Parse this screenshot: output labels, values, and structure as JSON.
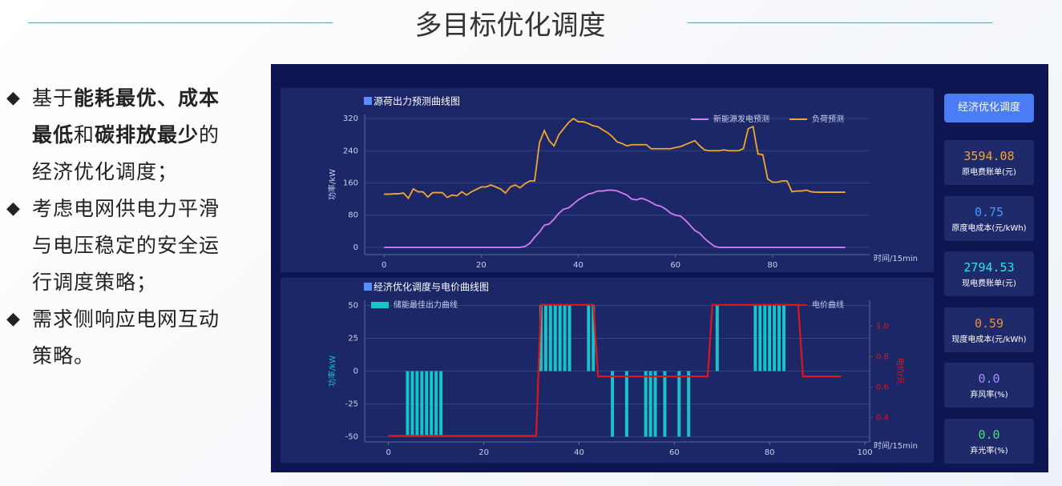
{
  "title": "多目标优化调度",
  "bullets": [
    {
      "segments": [
        {
          "text": "基于",
          "bold": false
        },
        {
          "text": "能耗最优、成本最低",
          "bold": true
        },
        {
          "text": "和",
          "bold": false
        },
        {
          "text": "碳排放最少",
          "bold": true
        },
        {
          "text": "的经济优化调度；",
          "bold": false
        }
      ]
    },
    {
      "segments": [
        {
          "text": "考虑电网供电力平滑与电压稳定的安全运行调度策略；",
          "bold": false
        }
      ]
    },
    {
      "segments": [
        {
          "text": "需求侧响应电网互动策略。",
          "bold": false
        }
      ]
    }
  ],
  "chart_data": [
    {
      "type": "line",
      "title": "源荷出力预测曲线图",
      "x_label": "时间/15min",
      "y_label": "功率/kW",
      "x": [
        0,
        1,
        2,
        3,
        4,
        5,
        6,
        7,
        8,
        9,
        10,
        11,
        12,
        13,
        14,
        15,
        16,
        17,
        18,
        19,
        20,
        21,
        22,
        23,
        24,
        25,
        26,
        27,
        28,
        29,
        30,
        31,
        32,
        33,
        34,
        35,
        36,
        37,
        38,
        39,
        40,
        41,
        42,
        43,
        44,
        45,
        46,
        47,
        48,
        49,
        50,
        51,
        52,
        53,
        54,
        55,
        56,
        57,
        58,
        59,
        60,
        61,
        62,
        63,
        64,
        65,
        66,
        67,
        68,
        69,
        70,
        71,
        72,
        73,
        74,
        75,
        76,
        77,
        78,
        79,
        80,
        81,
        82,
        83,
        84,
        85,
        86,
        87,
        88,
        89,
        90,
        91,
        92,
        93,
        94,
        95
      ],
      "xlim": [
        -4,
        100
      ],
      "xticks": [
        0,
        20,
        40,
        60,
        80
      ],
      "ylim": [
        -18,
        330
      ],
      "yticks": [
        0,
        80,
        160,
        240,
        320
      ],
      "grid": true,
      "legend": "upper right",
      "series": [
        {
          "name": "新能源发电预测",
          "color": "#d17cf5",
          "values": [
            0,
            0,
            0,
            0,
            0,
            0,
            0,
            0,
            0,
            0,
            0,
            0,
            0,
            0,
            0,
            0,
            0,
            0,
            0,
            0,
            0,
            0,
            0,
            0,
            0,
            0,
            0,
            0,
            0,
            2,
            10,
            25,
            38,
            55,
            58,
            70,
            85,
            95,
            98,
            108,
            118,
            125,
            132,
            135,
            140,
            140,
            142,
            142,
            140,
            135,
            130,
            120,
            118,
            122,
            118,
            112,
            105,
            102,
            95,
            85,
            80,
            78,
            68,
            55,
            42,
            35,
            22,
            12,
            3,
            0,
            0,
            0,
            0,
            0,
            0,
            0,
            0,
            0,
            0,
            0,
            0,
            0,
            0,
            0,
            0,
            0,
            0,
            0,
            0,
            0,
            0,
            0,
            0,
            0,
            0,
            0
          ]
        },
        {
          "name": "负荷预测",
          "color": "#f2a531",
          "values": [
            132,
            132,
            133,
            133,
            135,
            122,
            145,
            138,
            138,
            125,
            136,
            136,
            136,
            124,
            130,
            128,
            138,
            130,
            138,
            144,
            150,
            150,
            155,
            150,
            145,
            135,
            150,
            155,
            148,
            158,
            165,
            165,
            260,
            290,
            265,
            252,
            280,
            295,
            310,
            320,
            312,
            312,
            308,
            302,
            300,
            292,
            285,
            275,
            262,
            258,
            252,
            255,
            255,
            255,
            255,
            245,
            245,
            245,
            245,
            245,
            248,
            250,
            255,
            260,
            265,
            252,
            242,
            240,
            240,
            240,
            242,
            240,
            240,
            240,
            245,
            295,
            300,
            232,
            230,
            170,
            162,
            162,
            165,
            165,
            138,
            140,
            140,
            142,
            138,
            137,
            137,
            137,
            137,
            137,
            137,
            137
          ]
        }
      ]
    },
    {
      "type": "combo",
      "title": "经济优化调度与电价曲线图",
      "x_label": "时间/15min",
      "y_label": "功率/kW",
      "y2_label": "电价/元",
      "x": [
        0,
        1,
        2,
        3,
        4,
        5,
        6,
        7,
        8,
        9,
        10,
        11,
        12,
        13,
        14,
        15,
        16,
        17,
        18,
        19,
        20,
        21,
        22,
        23,
        24,
        25,
        26,
        27,
        28,
        29,
        30,
        31,
        32,
        33,
        34,
        35,
        36,
        37,
        38,
        39,
        40,
        41,
        42,
        43,
        44,
        45,
        46,
        47,
        48,
        49,
        50,
        51,
        52,
        53,
        54,
        55,
        56,
        57,
        58,
        59,
        60,
        61,
        62,
        63,
        64,
        65,
        66,
        67,
        68,
        69,
        70,
        71,
        72,
        73,
        74,
        75,
        76,
        77,
        78,
        79,
        80,
        81,
        82,
        83,
        84,
        85,
        86,
        87,
        88,
        89,
        90,
        91,
        92,
        93,
        94,
        95
      ],
      "xlim": [
        -5,
        101
      ],
      "xticks": [
        0,
        20,
        40,
        60,
        80,
        100
      ],
      "ylim": [
        -54,
        54
      ],
      "yticks": [
        -50,
        -25,
        0,
        25,
        50
      ],
      "y2lim": [
        0.24,
        1.17
      ],
      "y2ticks": [
        0.4,
        0.6,
        0.8,
        {
          "value": 1,
          "label": "1.0"
        }
      ],
      "grid": true,
      "series": [
        {
          "name": "储能最佳出力曲线",
          "type": "bar",
          "color": "#17c3c6",
          "legend": "upper left",
          "values": [
            0,
            0,
            0,
            0,
            -50,
            -50,
            -50,
            -50,
            -50,
            -50,
            -50,
            -50,
            0,
            0,
            0,
            0,
            0,
            0,
            0,
            0,
            0,
            0,
            0,
            0,
            0,
            0,
            0,
            0,
            0,
            0,
            0,
            0,
            50,
            50,
            50,
            50,
            50,
            50,
            50,
            0,
            0,
            0,
            50,
            50,
            0,
            0,
            0,
            -50,
            0,
            0,
            -50,
            0,
            0,
            0,
            -50,
            -50,
            -50,
            0,
            -50,
            0,
            0,
            -50,
            0,
            -50,
            0,
            0,
            0,
            0,
            0,
            50,
            0,
            0,
            0,
            0,
            0,
            0,
            0,
            50,
            50,
            50,
            50,
            50,
            50,
            50,
            0,
            0,
            0,
            0,
            0,
            0,
            0,
            0,
            0,
            0,
            0,
            0
          ]
        },
        {
          "name": "电价曲线",
          "type": "line",
          "axis": "y2",
          "color": "#e0161e",
          "legend": "upper right",
          "values": [
            0.28,
            0.28,
            0.28,
            0.28,
            0.28,
            0.28,
            0.28,
            0.28,
            0.28,
            0.28,
            0.28,
            0.28,
            0.28,
            0.28,
            0.28,
            0.28,
            0.28,
            0.28,
            0.28,
            0.28,
            0.28,
            0.28,
            0.28,
            0.28,
            0.28,
            0.28,
            0.28,
            0.28,
            0.28,
            0.28,
            0.28,
            0.28,
            1.14,
            1.14,
            1.14,
            1.14,
            1.14,
            1.14,
            1.14,
            1.14,
            1.14,
            1.14,
            1.14,
            1.14,
            0.67,
            0.67,
            0.67,
            0.67,
            0.67,
            0.67,
            0.67,
            0.67,
            0.67,
            0.67,
            0.67,
            0.67,
            0.67,
            0.67,
            0.67,
            0.67,
            0.67,
            0.67,
            0.67,
            0.67,
            0.67,
            0.67,
            0.67,
            0.67,
            1.14,
            1.14,
            1.14,
            1.14,
            1.14,
            1.14,
            1.14,
            1.14,
            1.14,
            1.14,
            1.14,
            1.14,
            1.14,
            1.14,
            1.14,
            1.14,
            1.14,
            1.14,
            1.14,
            0.67,
            0.67,
            0.67,
            0.67,
            0.67,
            0.67,
            0.67,
            0.67,
            0.67
          ]
        }
      ]
    }
  ],
  "dashboard": {
    "button": "经济优化调度",
    "cards": [
      {
        "value": "3594.08",
        "label": "原电费账单(元)",
        "color": "#f5a623"
      },
      {
        "value": "0.75",
        "label": "原度电成本(元/kWh)",
        "color": "#3aa0ff"
      },
      {
        "value": "2794.53",
        "label": "现电费账单(元)",
        "color": "#2ee6e6"
      },
      {
        "value": "0.59",
        "label": "现度电成本(元/kWh)",
        "color": "#f08a3c"
      },
      {
        "value": "0.0",
        "label": "弃风率(%)",
        "color": "#a78bfa"
      },
      {
        "value": "0.0",
        "label": "弃光率(%)",
        "color": "#4ade80"
      }
    ]
  }
}
